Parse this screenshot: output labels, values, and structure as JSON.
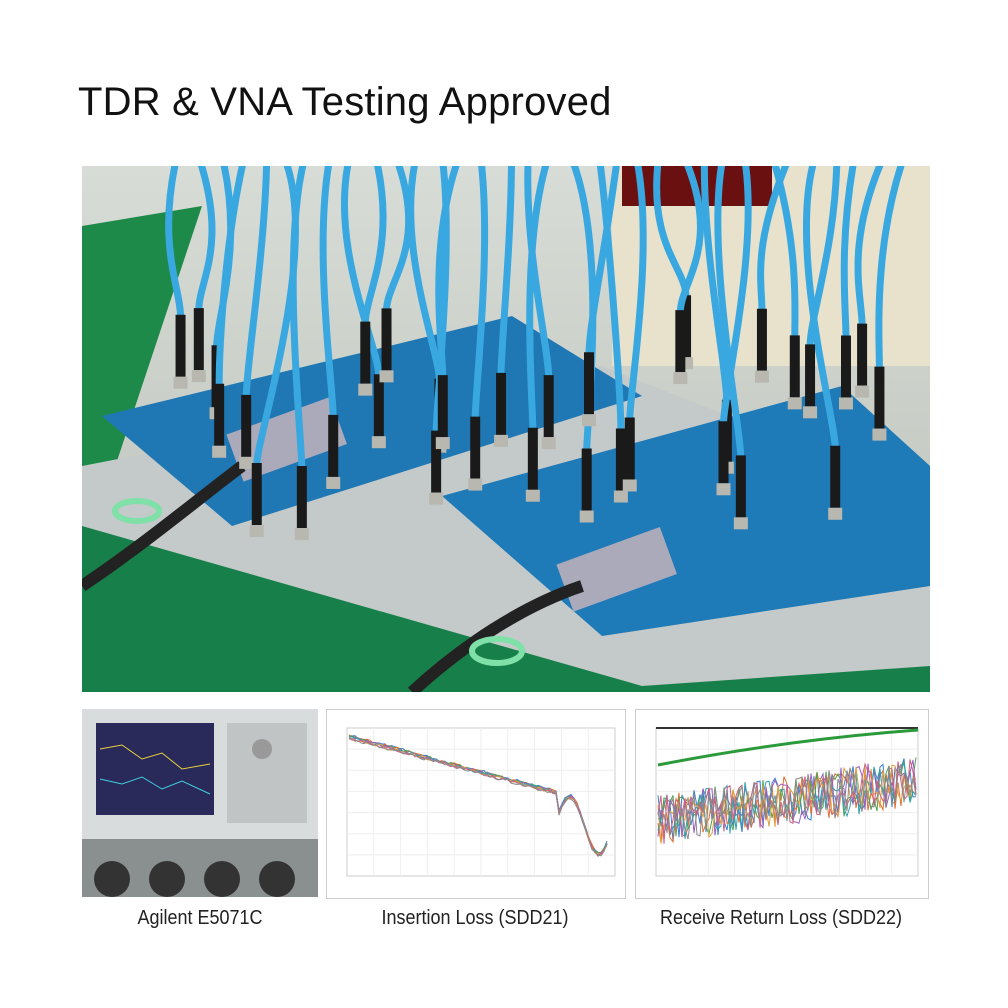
{
  "heading": "TDR & VNA Testing Approved",
  "photo": {
    "subject": "test-boards-with-cables"
  },
  "thumbnails": [
    {
      "caption": "Agilent E5071C"
    },
    {
      "caption": "Insertion Loss (SDD21)"
    },
    {
      "caption": "Receive Return Loss (SDD22)"
    }
  ],
  "colors": {
    "cable": "#3aa8e0",
    "board": "#1f78b4",
    "bench": "#1e8a4a",
    "trace_green": "#2a9a3a"
  }
}
